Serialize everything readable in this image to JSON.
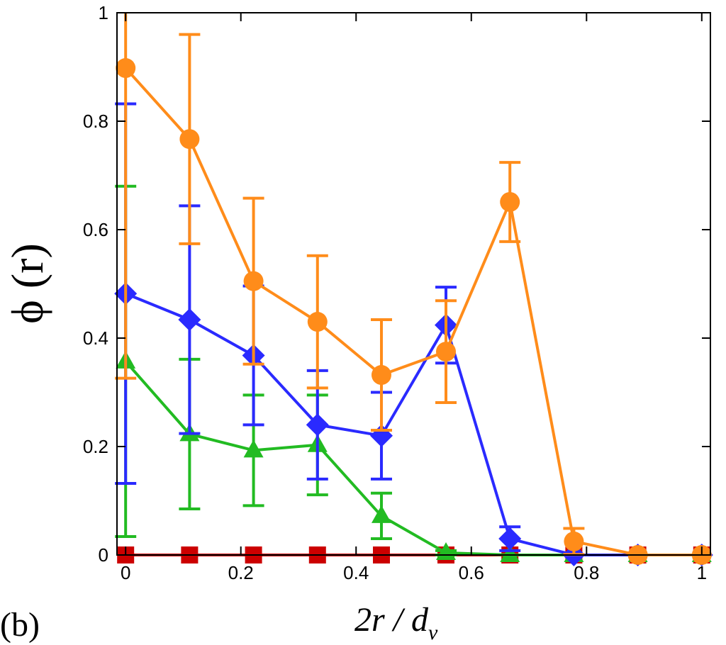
{
  "chart_data": {
    "type": "line",
    "panel_label": "(b)",
    "xlabel": "2r / d",
    "xlabel_sub": "v",
    "ylabel": "ϕ (r)",
    "xlim": [
      -0.015,
      1.015
    ],
    "ylim": [
      0,
      1
    ],
    "xticks": [
      0,
      0.2,
      0.4,
      0.6,
      0.8,
      1
    ],
    "xtick_labels": [
      "0",
      "0.2",
      "0.4",
      "0.6",
      "0.8",
      "1"
    ],
    "yticks": [
      0,
      0.2,
      0.4,
      0.6,
      0.8,
      1
    ],
    "ytick_labels": [
      "0",
      "0.2",
      "0.4",
      "0.6",
      "0.8",
      "1"
    ],
    "x": [
      0,
      0.111,
      0.222,
      0.333,
      0.444,
      0.556,
      0.667,
      0.778,
      0.889,
      1.0
    ],
    "series": [
      {
        "name": "red squares",
        "color": "#cc0000",
        "marker": "square",
        "values": [
          0,
          0,
          0,
          0,
          0,
          0,
          0,
          0,
          0,
          0
        ],
        "errors": [
          0,
          0,
          0,
          0,
          0,
          0,
          0,
          0,
          0,
          0
        ]
      },
      {
        "name": "green triangles",
        "color": "#22bb22",
        "marker": "triangle",
        "values": [
          0.357,
          0.223,
          0.193,
          0.203,
          0.072,
          0.004,
          0,
          0,
          0,
          0
        ],
        "errors": [
          0.323,
          0.138,
          0.102,
          0.092,
          0.042,
          0.004,
          0,
          0,
          0,
          0
        ]
      },
      {
        "name": "blue diamonds",
        "color": "#2a2aff",
        "marker": "diamond",
        "values": [
          0.482,
          0.434,
          0.368,
          0.24,
          0.22,
          0.424,
          0.03,
          0,
          0,
          0
        ],
        "errors": [
          0.35,
          0.21,
          0.128,
          0.1,
          0.08,
          0.07,
          0.022,
          0,
          0,
          0
        ]
      },
      {
        "name": "orange circles",
        "color": "#ff8c1a",
        "marker": "circle",
        "values": [
          0.898,
          0.767,
          0.505,
          0.43,
          0.332,
          0.375,
          0.651,
          0.025,
          0,
          0
        ],
        "errors": [
          0.572,
          0.193,
          0.153,
          0.122,
          0.102,
          0.094,
          0.073,
          0.024,
          0,
          0
        ]
      }
    ]
  }
}
